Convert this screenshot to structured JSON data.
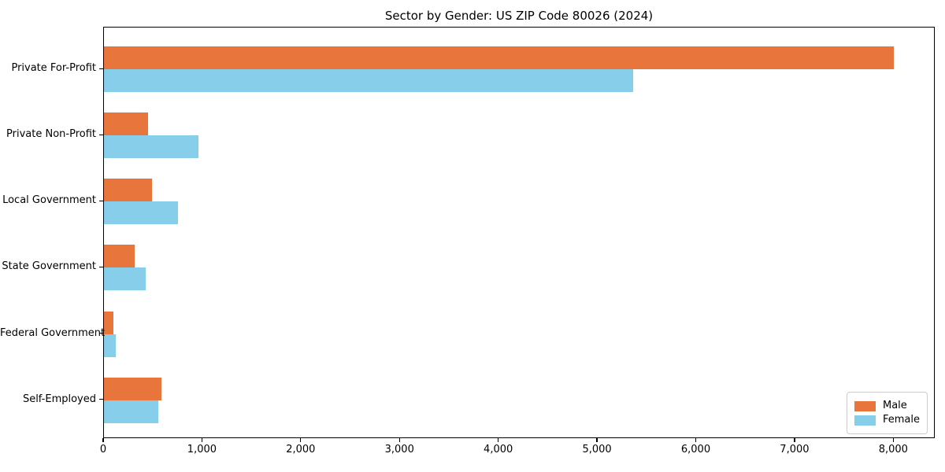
{
  "title": "Sector by Gender: US ZIP Code 80026 (2024)",
  "chart_data": {
    "type": "bar",
    "orientation": "horizontal",
    "title": "Sector by Gender: US ZIP Code 80026 (2024)",
    "xlabel": "",
    "ylabel": "",
    "categories": [
      "Private For-Profit",
      "Private Non-Profit",
      "Local Government",
      "State Government",
      "Federal Government",
      "Self-Employed"
    ],
    "series": [
      {
        "name": "Male",
        "color": "#E8763C",
        "values": [
          8000,
          445,
          490,
          310,
          95,
          585
        ]
      },
      {
        "name": "Female",
        "color": "#87CEEB",
        "values": [
          5360,
          960,
          750,
          425,
          120,
          550
        ]
      }
    ],
    "xlim": [
      0,
      8420
    ],
    "x_ticks": [
      0,
      1000,
      2000,
      3000,
      4000,
      5000,
      6000,
      7000,
      8000
    ],
    "x_tick_labels": [
      "0",
      "1,000",
      "2,000",
      "3,000",
      "4,000",
      "5,000",
      "6,000",
      "7,000",
      "8,000"
    ],
    "grid": false,
    "legend_position": "lower right"
  },
  "legend": {
    "items": [
      {
        "label": "Male",
        "color": "#E8763C"
      },
      {
        "label": "Female",
        "color": "#87CEEB"
      }
    ]
  }
}
